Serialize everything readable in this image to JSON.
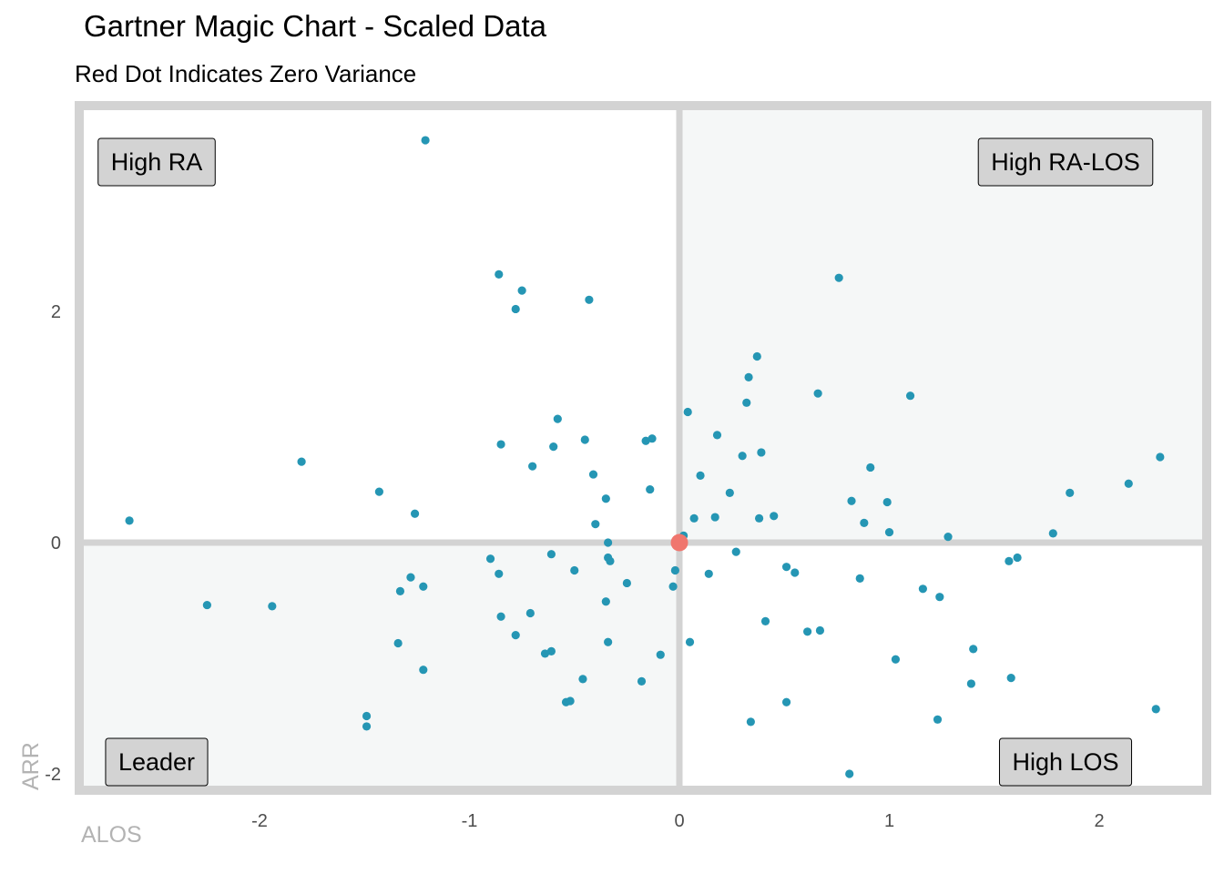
{
  "title": "Gartner Magic Chart - Scaled Data",
  "subtitle": "Red Dot Indicates Zero Variance",
  "colors": {
    "point": "#2596b4",
    "zero_point": "#f0766e",
    "quadrant_fill": "#f5f7f7",
    "frame": "#d3d3d3",
    "label_box": "#d3d3d3"
  },
  "chart_data": {
    "type": "scatter",
    "title": "Gartner Magic Chart - Scaled Data",
    "subtitle": "Red Dot Indicates Zero Variance",
    "xlabel": "ALOS",
    "ylabel": "ARR",
    "xlim": [
      -2.85,
      2.45
    ],
    "ylim": [
      -2.2,
      3.77
    ],
    "x_ticks": [
      -2,
      -1,
      0,
      1,
      2
    ],
    "y_ticks": [
      -2,
      0,
      2
    ],
    "grid": false,
    "quadrant_labels": {
      "top_left": "High RA",
      "top_right": "High RA-LOS",
      "bottom_left": "Leader",
      "bottom_right": "High LOS"
    },
    "zero_point": {
      "x": 0,
      "y": 0
    },
    "points": [
      {
        "x": -1.21,
        "y": 3.48
      },
      {
        "x": -0.86,
        "y": 2.32
      },
      {
        "x": -0.75,
        "y": 2.18
      },
      {
        "x": -0.78,
        "y": 2.02
      },
      {
        "x": -0.43,
        "y": 2.1
      },
      {
        "x": 0.76,
        "y": 2.29
      },
      {
        "x": 0.37,
        "y": 1.61
      },
      {
        "x": 0.33,
        "y": 1.43
      },
      {
        "x": 0.32,
        "y": 1.21
      },
      {
        "x": 0.66,
        "y": 1.29
      },
      {
        "x": 1.1,
        "y": 1.27
      },
      {
        "x": 0.04,
        "y": 1.13
      },
      {
        "x": -0.58,
        "y": 1.07
      },
      {
        "x": -0.45,
        "y": 0.89
      },
      {
        "x": -0.85,
        "y": 0.85
      },
      {
        "x": -0.6,
        "y": 0.83
      },
      {
        "x": -0.16,
        "y": 0.88
      },
      {
        "x": -0.13,
        "y": 0.9
      },
      {
        "x": 0.18,
        "y": 0.93
      },
      {
        "x": 0.39,
        "y": 0.78
      },
      {
        "x": 0.3,
        "y": 0.75
      },
      {
        "x": 0.91,
        "y": 0.65
      },
      {
        "x": -1.8,
        "y": 0.7
      },
      {
        "x": -0.7,
        "y": 0.66
      },
      {
        "x": -0.41,
        "y": 0.59
      },
      {
        "x": 0.1,
        "y": 0.58
      },
      {
        "x": 2.14,
        "y": 0.51
      },
      {
        "x": 2.29,
        "y": 0.74
      },
      {
        "x": -1.43,
        "y": 0.44
      },
      {
        "x": -0.14,
        "y": 0.46
      },
      {
        "x": 0.24,
        "y": 0.43
      },
      {
        "x": 1.86,
        "y": 0.43
      },
      {
        "x": -0.35,
        "y": 0.38
      },
      {
        "x": 0.82,
        "y": 0.36
      },
      {
        "x": 0.99,
        "y": 0.35
      },
      {
        "x": -2.62,
        "y": 0.19
      },
      {
        "x": -1.26,
        "y": 0.25
      },
      {
        "x": 0.07,
        "y": 0.21
      },
      {
        "x": 0.17,
        "y": 0.22
      },
      {
        "x": 0.38,
        "y": 0.21
      },
      {
        "x": 0.45,
        "y": 0.23
      },
      {
        "x": 0.88,
        "y": 0.17
      },
      {
        "x": -0.4,
        "y": 0.16
      },
      {
        "x": 1.0,
        "y": 0.09
      },
      {
        "x": 1.78,
        "y": 0.08
      },
      {
        "x": 1.28,
        "y": 0.05
      },
      {
        "x": 0.02,
        "y": 0.06
      },
      {
        "x": -0.34,
        "y": 0.0
      },
      {
        "x": -0.9,
        "y": -0.14
      },
      {
        "x": -0.61,
        "y": -0.1
      },
      {
        "x": -0.34,
        "y": -0.13
      },
      {
        "x": -0.33,
        "y": -0.16
      },
      {
        "x": 0.27,
        "y": -0.08
      },
      {
        "x": 1.61,
        "y": -0.13
      },
      {
        "x": 1.57,
        "y": -0.16
      },
      {
        "x": -0.86,
        "y": -0.27
      },
      {
        "x": -0.5,
        "y": -0.24
      },
      {
        "x": -0.02,
        "y": -0.24
      },
      {
        "x": 0.14,
        "y": -0.27
      },
      {
        "x": 0.51,
        "y": -0.21
      },
      {
        "x": 0.55,
        "y": -0.26
      },
      {
        "x": -1.28,
        "y": -0.3
      },
      {
        "x": -1.22,
        "y": -0.38
      },
      {
        "x": -1.33,
        "y": -0.42
      },
      {
        "x": -0.25,
        "y": -0.35
      },
      {
        "x": -0.03,
        "y": -0.38
      },
      {
        "x": 0.86,
        "y": -0.31
      },
      {
        "x": 1.16,
        "y": -0.4
      },
      {
        "x": 1.24,
        "y": -0.47
      },
      {
        "x": -2.25,
        "y": -0.54
      },
      {
        "x": -1.94,
        "y": -0.55
      },
      {
        "x": -0.35,
        "y": -0.51
      },
      {
        "x": -0.71,
        "y": -0.61
      },
      {
        "x": -0.85,
        "y": -0.64
      },
      {
        "x": 0.41,
        "y": -0.68
      },
      {
        "x": -0.78,
        "y": -0.8
      },
      {
        "x": 0.61,
        "y": -0.77
      },
      {
        "x": 0.67,
        "y": -0.76
      },
      {
        "x": -1.34,
        "y": -0.87
      },
      {
        "x": -0.34,
        "y": -0.86
      },
      {
        "x": 0.05,
        "y": -0.86
      },
      {
        "x": -0.64,
        "y": -0.96
      },
      {
        "x": -0.61,
        "y": -0.94
      },
      {
        "x": -0.09,
        "y": -0.97
      },
      {
        "x": 1.4,
        "y": -0.92
      },
      {
        "x": 1.03,
        "y": -1.01
      },
      {
        "x": -1.22,
        "y": -1.1
      },
      {
        "x": -0.46,
        "y": -1.18
      },
      {
        "x": -0.18,
        "y": -1.2
      },
      {
        "x": 1.58,
        "y": -1.17
      },
      {
        "x": 1.39,
        "y": -1.22
      },
      {
        "x": -0.54,
        "y": -1.38
      },
      {
        "x": -0.52,
        "y": -1.37
      },
      {
        "x": 0.51,
        "y": -1.38
      },
      {
        "x": 2.27,
        "y": -1.44
      },
      {
        "x": -1.49,
        "y": -1.5
      },
      {
        "x": -1.49,
        "y": -1.59
      },
      {
        "x": 0.34,
        "y": -1.55
      },
      {
        "x": 1.23,
        "y": -1.53
      },
      {
        "x": 0.81,
        "y": -2.0
      }
    ]
  }
}
